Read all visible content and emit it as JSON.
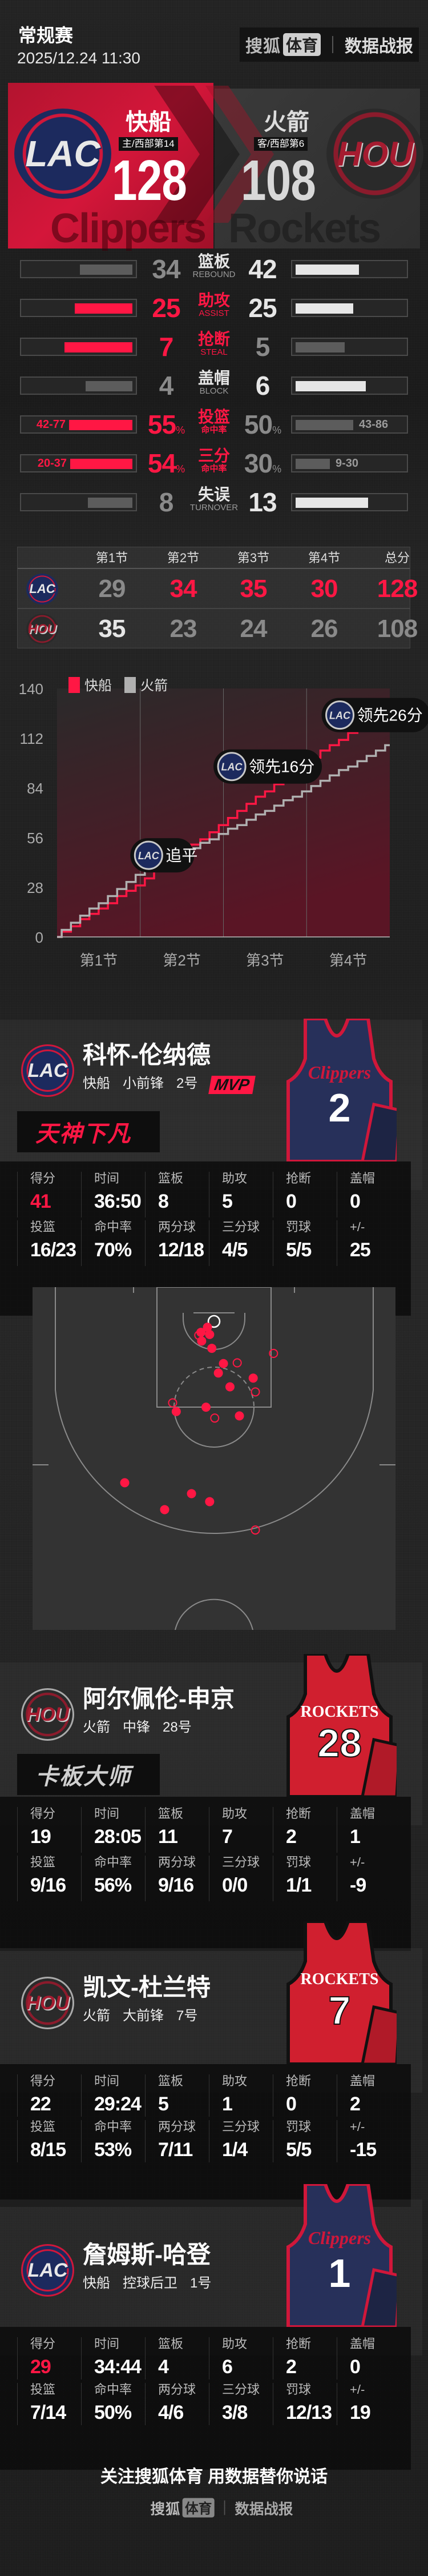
{
  "header": {
    "title": "常规赛",
    "datetime": "2025/12.24 11:30",
    "brand": {
      "sohu": "搜狐",
      "tiyu": "体育",
      "report": "数据战报"
    }
  },
  "colors": {
    "red": "#ff1744",
    "white": "#e6e6e6",
    "gray": "#8a8a8a",
    "bar_gray": "#5c5c5c",
    "clippers_navy": "#27305a",
    "rockets_red": "#d01f2f"
  },
  "teams": {
    "home": {
      "name": "快船",
      "abbr": "LAC",
      "sub": "主/西部第14",
      "score": "128",
      "watermark": "Clippers"
    },
    "away": {
      "name": "火箭",
      "abbr": "HOU",
      "sub": "客/西部第6",
      "score": "108",
      "watermark": "Rockets"
    }
  },
  "comparison": [
    {
      "cn": "篮板",
      "en": "REBOUND",
      "home": "34",
      "away": "42",
      "home_fill": 0.47,
      "away_fill": 0.57,
      "label_color": "white",
      "home_color": "gray",
      "away_color": "white",
      "home_bar": "bar_gray",
      "away_bar": "white"
    },
    {
      "cn": "助攻",
      "en": "ASSIST",
      "home": "25",
      "away": "25",
      "home_fill": 0.52,
      "away_fill": 0.52,
      "label_color": "red",
      "home_color": "red",
      "away_color": "white",
      "home_bar": "red",
      "away_bar": "white"
    },
    {
      "cn": "抢断",
      "en": "STEAL",
      "home": "7",
      "away": "5",
      "home_fill": 0.61,
      "away_fill": 0.44,
      "label_color": "red",
      "home_color": "red",
      "away_color": "gray",
      "home_bar": "red",
      "away_bar": "bar_gray"
    },
    {
      "cn": "盖帽",
      "en": "BLOCK",
      "home": "4",
      "away": "6",
      "home_fill": 0.42,
      "away_fill": 0.63,
      "label_color": "white",
      "home_color": "gray",
      "away_color": "white",
      "home_bar": "bar_gray",
      "away_bar": "white"
    },
    {
      "cn": "投篮",
      "sub": "命中率",
      "home": "55",
      "away": "50",
      "pct": "%",
      "home_detail": "42-77",
      "away_detail": "43-86",
      "home_fill": 0.57,
      "away_fill": 0.52,
      "label_color": "red",
      "home_color": "red",
      "away_color": "gray",
      "home_bar": "red",
      "away_bar": "bar_gray"
    },
    {
      "cn": "三分",
      "sub": "命中率",
      "home": "54",
      "away": "30",
      "pct": "%",
      "home_detail": "20-37",
      "away_detail": "9-30",
      "home_fill": 0.56,
      "away_fill": 0.31,
      "label_color": "red",
      "home_color": "red",
      "away_color": "gray",
      "home_bar": "red",
      "away_bar": "bar_gray"
    },
    {
      "cn": "失误",
      "en": "TURNOVER",
      "home": "8",
      "away": "13",
      "home_fill": 0.4,
      "away_fill": 0.65,
      "label_color": "white",
      "home_color": "gray",
      "away_color": "white",
      "home_bar": "bar_gray",
      "away_bar": "white"
    }
  ],
  "quarters": {
    "headers": [
      "第1节",
      "第2节",
      "第3节",
      "第4节",
      "总分"
    ],
    "home": {
      "abbr": "LAC",
      "scores": [
        "29",
        "34",
        "35",
        "30",
        "128"
      ],
      "colors": [
        "gray",
        "red",
        "red",
        "red",
        "red"
      ]
    },
    "away": {
      "abbr": "HOU",
      "scores": [
        "35",
        "23",
        "24",
        "26",
        "108"
      ],
      "colors": [
        "white",
        "gray",
        "gray",
        "gray",
        "gray"
      ]
    }
  },
  "chart_data": {
    "type": "line",
    "step": true,
    "categories": [
      "第1节",
      "第2节",
      "第3节",
      "第4节"
    ],
    "yticks": [
      "0",
      "28",
      "56",
      "84",
      "112",
      "140"
    ],
    "ylim": [
      0,
      140
    ],
    "xlim": [
      0,
      4
    ],
    "grid": "vertical quarter dividers",
    "legend": "top-left",
    "series": [
      {
        "name": "快船",
        "color": "#ff1744",
        "x": [
          0,
          1,
          2,
          3,
          4
        ],
        "y": [
          0,
          29,
          63,
          98,
          128
        ]
      },
      {
        "name": "火箭",
        "color": "#b0b0b0",
        "x": [
          0,
          1,
          2,
          3,
          4
        ],
        "y": [
          0,
          35,
          58,
          82,
          108
        ]
      }
    ],
    "annotations": [
      {
        "logo": "LAC",
        "text": "追平",
        "x": 1.1,
        "y": 46
      },
      {
        "logo": "LAC",
        "text": "领先16分",
        "x": 2.1,
        "y": 96
      },
      {
        "logo": "LAC",
        "text": "领先26分",
        "x": 3.4,
        "y": 125
      }
    ]
  },
  "stat_labels": {
    "row1": [
      "得分",
      "时间",
      "篮板",
      "助攻",
      "抢断",
      "盖帽"
    ],
    "row2": [
      "投篮",
      "命中率",
      "两分球",
      "三分球",
      "罚球",
      "+/-"
    ]
  },
  "players": [
    {
      "name": "科怀-伦纳德",
      "team": "快船",
      "pos": "小前锋",
      "num_label": "2号",
      "jersey_num": "2",
      "jersey_text": "Clippers",
      "logo": "LAC",
      "badge": "MVP",
      "title": "天神下凡",
      "title_color": "red",
      "row1": [
        "41",
        "36:50",
        "8",
        "5",
        "0",
        "0"
      ],
      "row2": [
        "16/23",
        "70%",
        "12/18",
        "4/5",
        "5/5",
        "25"
      ]
    },
    {
      "name": "阿尔佩伦-申京",
      "team": "火箭",
      "pos": "中锋",
      "num_label": "28号",
      "jersey_num": "28",
      "jersey_text": "ROCKETS",
      "logo": "HOU",
      "title": "卡板大师",
      "title_color": "white",
      "row1": [
        "19",
        "28:05",
        "11",
        "7",
        "2",
        "1"
      ],
      "row2": [
        "9/16",
        "56%",
        "9/16",
        "0/0",
        "1/1",
        "-9"
      ]
    },
    {
      "name": "凯文-杜兰特",
      "team": "火箭",
      "pos": "大前锋",
      "num_label": "7号",
      "jersey_num": "7",
      "jersey_text": "ROCKETS",
      "logo": "HOU",
      "row1": [
        "22",
        "29:24",
        "5",
        "1",
        "0",
        "2"
      ],
      "row2": [
        "8/15",
        "53%",
        "7/11",
        "1/4",
        "5/5",
        "-15"
      ]
    },
    {
      "name": "詹姆斯-哈登",
      "team": "快船",
      "pos": "控球后卫",
      "num_label": "1号",
      "jersey_num": "1",
      "jersey_text": "Clippers",
      "logo": "LAC",
      "row1": [
        "29",
        "34:44",
        "4",
        "6",
        "2",
        "0"
      ],
      "row2": [
        "7/14",
        "50%",
        "4/6",
        "3/8",
        "12/13",
        "19"
      ]
    }
  ],
  "shot_chart": {
    "player": "科怀-伦纳德",
    "units": "feet from basket (x lateral, y toward half court)",
    "made": [
      [
        -0.9,
        0.8
      ],
      [
        -1.8,
        1.5
      ],
      [
        -0.6,
        1.8
      ],
      [
        -1.7,
        2.7
      ],
      [
        -0.3,
        3.7
      ],
      [
        1.3,
        5.8
      ],
      [
        0.6,
        7.1
      ],
      [
        5.4,
        7.8
      ],
      [
        2.2,
        9.0
      ],
      [
        -1.1,
        11.8
      ],
      [
        -5.2,
        12.4
      ],
      [
        3.5,
        13.0
      ],
      [
        -12.3,
        22.2
      ],
      [
        -3.1,
        23.7
      ],
      [
        -0.6,
        24.8
      ],
      [
        -6.8,
        25.9
      ]
    ],
    "missed": [
      [
        -2.1,
        1.9
      ],
      [
        8.2,
        4.4
      ],
      [
        3.2,
        5.7
      ],
      [
        5.7,
        9.7
      ],
      [
        -5.7,
        11.2
      ],
      [
        0.1,
        13.3
      ],
      [
        5.7,
        28.7
      ]
    ]
  },
  "footer": {
    "slogan": "关注搜狐体育 用数据替你说话",
    "brand": {
      "sohu": "搜狐",
      "tiyu": "体育",
      "report": "数据战报"
    }
  }
}
